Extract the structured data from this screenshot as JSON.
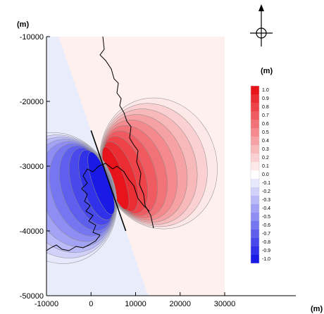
{
  "chart_data": {
    "type": "heatmap",
    "title": "",
    "xlabel": "(m)",
    "ylabel": "(m)",
    "xlim": [
      -10000,
      30000
    ],
    "ylim": [
      -50000,
      -10000
    ],
    "x_ticks": [
      "-10000",
      "0",
      "10000",
      "20000",
      "30000"
    ],
    "y_ticks": [
      "-10000",
      "-20000",
      "-30000",
      "-40000",
      "-50000"
    ],
    "colorbar": {
      "title": "(m)",
      "labels": [
        "1.0",
        "0.9",
        "0.8",
        "0.7",
        "0.6",
        "0.5",
        "0.4",
        "0.3",
        "0.2",
        "0.1",
        "0.0",
        "-0.1",
        "-0.2",
        "-0.3",
        "-0.4",
        "-0.5",
        "-0.6",
        "-0.7",
        "-0.8",
        "-0.9",
        "-1.0"
      ],
      "levels": [
        1.0,
        0.9,
        0.8,
        0.7,
        0.6,
        0.5,
        0.4,
        0.3,
        0.2,
        0.1,
        0.0,
        -0.1,
        -0.2,
        -0.3,
        -0.4,
        -0.5,
        -0.6,
        -0.7,
        -0.8,
        -0.9,
        -1.0
      ],
      "max_color": "#e8141c",
      "min_color": "#1a1ae6"
    },
    "fault_line": {
      "x": [
        0,
        7800
      ],
      "y": [
        -24500,
        -40000
      ]
    },
    "positive_domain_color": "#fdf0ee",
    "negative_domain_color": "#e8ecfb",
    "north_arrow": true
  }
}
